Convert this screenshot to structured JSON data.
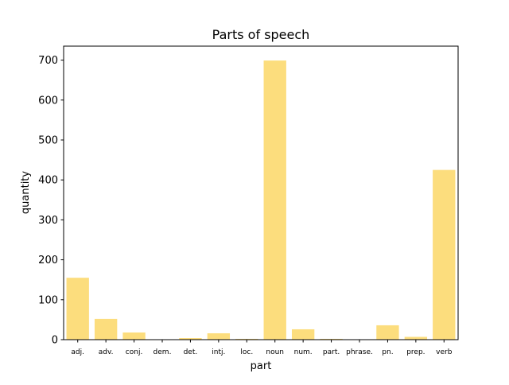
{
  "chart_data": {
    "type": "bar",
    "title": "Parts of speech",
    "xlabel": "part",
    "ylabel": "quantity",
    "categories": [
      "adj.",
      "adv.",
      "conj.",
      "dem.",
      "det.",
      "intj.",
      "loc.",
      "noun",
      "num.",
      "part.",
      "phrase.",
      "pn.",
      "prep.",
      "verb"
    ],
    "values": [
      155,
      52,
      18,
      0,
      4,
      16,
      2,
      699,
      26,
      2,
      0,
      36,
      7,
      425
    ],
    "ylim": [
      0,
      735
    ],
    "yticks": [
      0,
      100,
      200,
      300,
      400,
      500,
      600,
      700
    ],
    "grid": false,
    "bar_color": "#fcdd7d"
  }
}
